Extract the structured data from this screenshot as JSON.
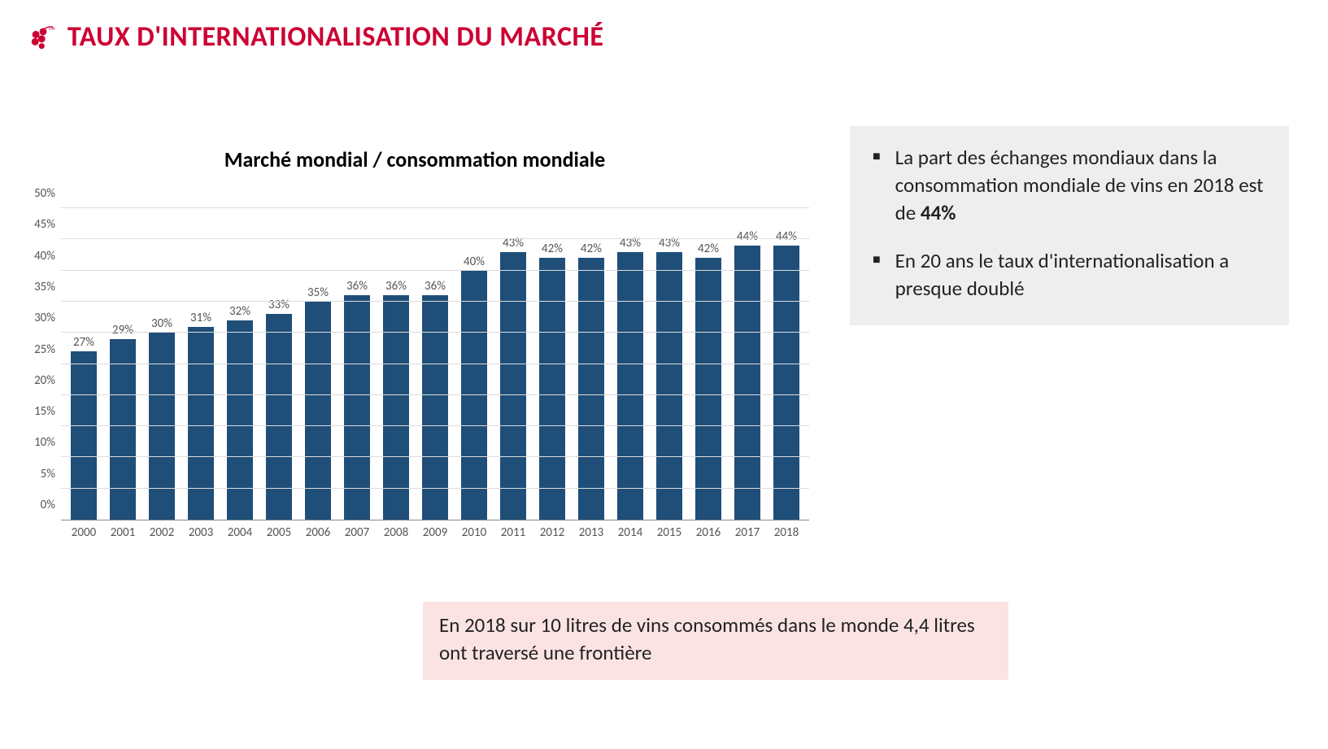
{
  "header": {
    "title": "TAUX D'INTERNATIONALISATION DU MARCHÉ",
    "title_color": "#cc0033",
    "logo_color": "#cc0033"
  },
  "chart": {
    "type": "bar",
    "title": "Marché mondial / consommation mondiale",
    "title_fontsize": 26,
    "categories": [
      "2000",
      "2001",
      "2002",
      "2003",
      "2004",
      "2005",
      "2006",
      "2007",
      "2008",
      "2009",
      "2010",
      "2011",
      "2012",
      "2013",
      "2014",
      "2015",
      "2016",
      "2017",
      "2018"
    ],
    "values": [
      27,
      29,
      30,
      31,
      32,
      33,
      35,
      36,
      36,
      36,
      40,
      43,
      42,
      42,
      43,
      43,
      42,
      44,
      44
    ],
    "value_label_suffix": "%",
    "bar_color": "#1f4e79",
    "ylim": [
      0,
      50
    ],
    "ytick_step": 5,
    "ytick_suffix": "%",
    "grid_color": "#dcdcdc",
    "axis_color": "#888888",
    "label_color": "#555555",
    "label_fontsize": 15,
    "bar_width_ratio": 0.68,
    "background_color": "#ffffff"
  },
  "sidebar": {
    "background_color": "#eeeeee",
    "bullets": [
      {
        "html": "La part des échanges mondiaux dans la consommation mondiale de vins en 2018 est de <b>44%</b>"
      },
      {
        "html": "En 20 ans le taux d'internationalisation a presque doublé"
      }
    ]
  },
  "footnote": {
    "background_color": "#fce3e3",
    "text": "En 2018 sur 10 litres de vins consommés dans le monde 4,4 litres ont traversé une frontière"
  }
}
